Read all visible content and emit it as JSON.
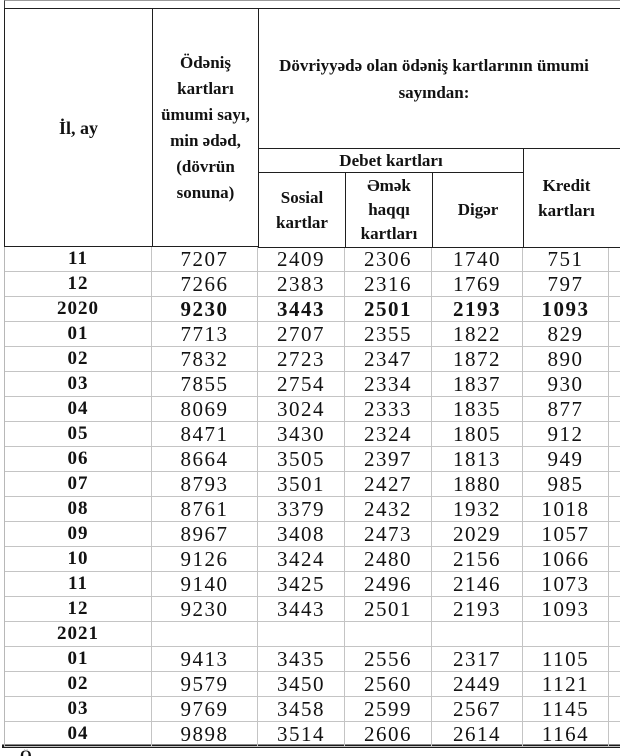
{
  "colors": {
    "header_border": "#1f1f1f",
    "grid_line": "#c4c4c4",
    "text": "#121212",
    "bg": "#ffffff"
  },
  "table": {
    "header": {
      "col_period": "İl, ay",
      "col_total": "Ödəniş kartları ümumi sayı, min ədəd, (dövrün sonuna)",
      "group_circulation": "Dövriyyədə olan ödəniş kartlarının ümumi sayından:",
      "group_debit": "Debet kartları",
      "col_social": "Sosial kartlar",
      "col_salary": "Əmək haqqı kartları",
      "col_other": "Digər",
      "col_credit": "Kredit kartları"
    },
    "rows": [
      {
        "label": "11",
        "type": "month",
        "values": [
          "7207",
          "2409",
          "2306",
          "1740",
          "751"
        ]
      },
      {
        "label": "12",
        "type": "month",
        "values": [
          "7266",
          "2383",
          "2316",
          "1769",
          "797"
        ]
      },
      {
        "label": "2020",
        "type": "year",
        "values": [
          "9230",
          "3443",
          "2501",
          "2193",
          "1093"
        ]
      },
      {
        "label": "01",
        "type": "month",
        "values": [
          "7713",
          "2707",
          "2355",
          "1822",
          "829"
        ]
      },
      {
        "label": "02",
        "type": "month",
        "values": [
          "7832",
          "2723",
          "2347",
          "1872",
          "890"
        ]
      },
      {
        "label": "03",
        "type": "month",
        "values": [
          "7855",
          "2754",
          "2334",
          "1837",
          "930"
        ]
      },
      {
        "label": "04",
        "type": "month",
        "values": [
          "8069",
          "3024",
          "2333",
          "1835",
          "877"
        ]
      },
      {
        "label": "05",
        "type": "month",
        "values": [
          "8471",
          "3430",
          "2324",
          "1805",
          "912"
        ]
      },
      {
        "label": "06",
        "type": "month",
        "values": [
          "8664",
          "3505",
          "2397",
          "1813",
          "949"
        ]
      },
      {
        "label": "07",
        "type": "month",
        "values": [
          "8793",
          "3501",
          "2427",
          "1880",
          "985"
        ]
      },
      {
        "label": "08",
        "type": "month",
        "values": [
          "8761",
          "3379",
          "2432",
          "1932",
          "1018"
        ]
      },
      {
        "label": "09",
        "type": "month",
        "values": [
          "8967",
          "3408",
          "2473",
          "2029",
          "1057"
        ]
      },
      {
        "label": "10",
        "type": "month",
        "values": [
          "9126",
          "3424",
          "2480",
          "2156",
          "1066"
        ]
      },
      {
        "label": "11",
        "type": "month",
        "values": [
          "9140",
          "3425",
          "2496",
          "2146",
          "1073"
        ]
      },
      {
        "label": "12",
        "type": "month",
        "values": [
          "9230",
          "3443",
          "2501",
          "2193",
          "1093"
        ]
      },
      {
        "label": "2021",
        "type": "year",
        "values": [
          "",
          "",
          "",
          "",
          ""
        ]
      },
      {
        "label": "01",
        "type": "month",
        "values": [
          "9413",
          "3435",
          "2556",
          "2317",
          "1105"
        ]
      },
      {
        "label": "02",
        "type": "month",
        "values": [
          "9579",
          "3450",
          "2560",
          "2449",
          "1121"
        ]
      },
      {
        "label": "03",
        "type": "month",
        "values": [
          "9769",
          "3458",
          "2599",
          "2567",
          "1145"
        ]
      },
      {
        "label": "04",
        "type": "month",
        "values": [
          "9898",
          "3514",
          "2606",
          "2614",
          "1164"
        ]
      }
    ]
  },
  "footnote_fragment": "Ö"
}
